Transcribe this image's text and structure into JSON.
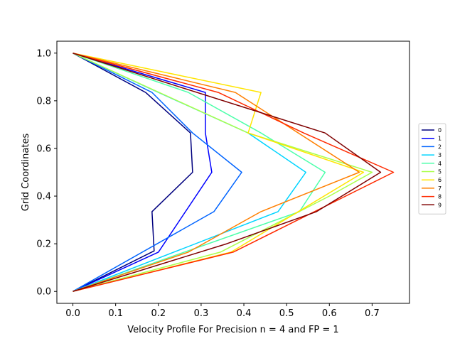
{
  "chart_data": {
    "type": "line",
    "title": "",
    "xlabel": "Velocity Profile For Precision n = 4 and FP = 1",
    "ylabel": "Grid Coordinates",
    "xlim": [
      -0.0375,
      0.7875
    ],
    "ylim": [
      -0.05,
      1.05
    ],
    "xticks": [
      "0.0",
      "0.1",
      "0.2",
      "0.3",
      "0.4",
      "0.5",
      "0.6",
      "0.7"
    ],
    "yticks": [
      "0.0",
      "0.2",
      "0.4",
      "0.6",
      "0.8",
      "1.0"
    ],
    "grid": false,
    "legend": "right",
    "series": [
      {
        "name": "0",
        "color": "#00007f",
        "x": [
          0.0,
          0.19,
          0.185,
          0.28,
          0.275,
          0.17,
          0.0
        ],
        "y": [
          0.0,
          0.17,
          0.335,
          0.5,
          0.665,
          0.835,
          1.0
        ]
      },
      {
        "name": "1",
        "color": "#0000ff",
        "x": [
          0.0,
          0.2,
          0.325,
          0.31,
          0.31,
          0.0
        ],
        "y": [
          0.0,
          0.165,
          0.5,
          0.665,
          0.835,
          1.0
        ]
      },
      {
        "name": "2",
        "color": "#0064ff",
        "x": [
          0.0,
          0.33,
          0.395,
          0.28,
          0.185,
          0.0
        ],
        "y": [
          0.0,
          0.335,
          0.5,
          0.665,
          0.835,
          1.0
        ]
      },
      {
        "name": "3",
        "color": "#00d4ff",
        "x": [
          0.0,
          0.48,
          0.545,
          0.41,
          0.2,
          0.0
        ],
        "y": [
          0.0,
          0.335,
          0.5,
          0.665,
          0.835,
          1.0
        ]
      },
      {
        "name": "4",
        "color": "#4cffaa",
        "x": [
          0.0,
          0.53,
          0.59,
          0.44,
          0.27,
          0.0
        ],
        "y": [
          0.0,
          0.335,
          0.5,
          0.665,
          0.835,
          1.0
        ]
      },
      {
        "name": "5",
        "color": "#aaff4c",
        "x": [
          0.0,
          0.345,
          0.6,
          0.7,
          0.41,
          0.0
        ],
        "y": [
          0.0,
          0.165,
          0.4,
          0.5,
          0.665,
          1.0
        ]
      },
      {
        "name": "6",
        "color": "#ffe500",
        "x": [
          0.0,
          0.37,
          0.68,
          0.41,
          0.44,
          0.0
        ],
        "y": [
          0.0,
          0.165,
          0.5,
          0.665,
          0.835,
          1.0
        ]
      },
      {
        "name": "7",
        "color": "#ff7f00",
        "x": [
          0.0,
          0.27,
          0.44,
          0.67,
          0.38,
          0.0
        ],
        "y": [
          0.0,
          0.165,
          0.335,
          0.5,
          0.835,
          1.0
        ]
      },
      {
        "name": "8",
        "color": "#ff2a00",
        "x": [
          0.0,
          0.375,
          0.75,
          0.54,
          0.34,
          0.0
        ],
        "y": [
          0.0,
          0.165,
          0.5,
          0.665,
          0.835,
          1.0
        ]
      },
      {
        "name": "9",
        "color": "#7f0000",
        "x": [
          0.0,
          0.36,
          0.57,
          0.72,
          0.59,
          0.0
        ],
        "y": [
          0.0,
          0.2,
          0.335,
          0.5,
          0.665,
          1.0
        ]
      }
    ]
  }
}
